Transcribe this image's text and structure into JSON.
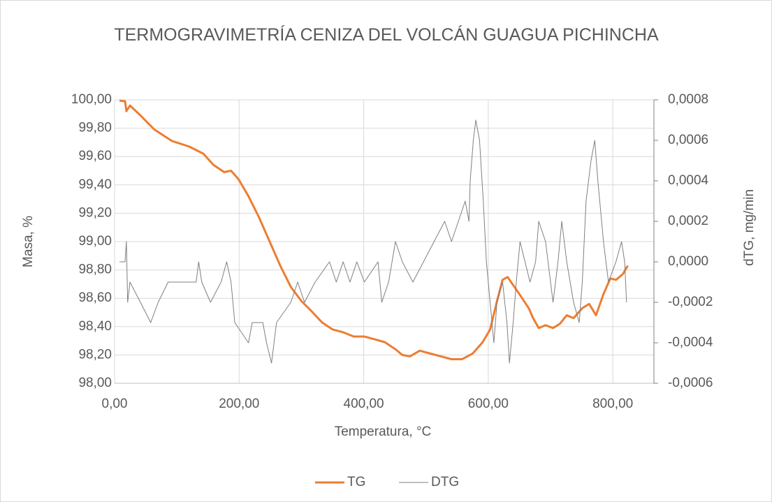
{
  "chart_data": {
    "type": "line",
    "title": "TERMOGRAVIMETRÍA CENIZA DEL VOLCÁN GUAGUA PICHINCHA",
    "x_label": "Temperatura, °C",
    "y_label": "Masa, %",
    "y2_label": "dTG, mg/min",
    "xlim": [
      0,
      866
    ],
    "xticks": [
      {
        "value": 0,
        "label": "0,00"
      },
      {
        "value": 200,
        "label": "200,00"
      },
      {
        "value": 400,
        "label": "400,00"
      },
      {
        "value": 600,
        "label": "600,00"
      },
      {
        "value": 800,
        "label": "800,00"
      }
    ],
    "ylim": [
      98,
      100
    ],
    "yticks": [
      {
        "value": 98,
        "label": "98,00"
      },
      {
        "value": 98.2,
        "label": "98,20"
      },
      {
        "value": 98.4,
        "label": "98,40"
      },
      {
        "value": 98.6,
        "label": "98,60"
      },
      {
        "value": 98.8,
        "label": "98,80"
      },
      {
        "value": 99,
        "label": "99,00"
      },
      {
        "value": 99.2,
        "label": "99,20"
      },
      {
        "value": 99.4,
        "label": "99,40"
      },
      {
        "value": 99.6,
        "label": "99,60"
      },
      {
        "value": 99.8,
        "label": "99,80"
      },
      {
        "value": 100,
        "label": "100,00"
      }
    ],
    "y2lim": [
      -0.0006,
      0.0008
    ],
    "y2ticks": [
      {
        "value": -0.0006,
        "label": "-0,0006"
      },
      {
        "value": -0.0004,
        "label": "-0,0004"
      },
      {
        "value": -0.0002,
        "label": "-0,0002"
      },
      {
        "value": 0,
        "label": "0,0000"
      },
      {
        "value": 0.0002,
        "label": "0,0002"
      },
      {
        "value": 0.0004,
        "label": "0,0004"
      },
      {
        "value": 0.0006,
        "label": "0,0006"
      },
      {
        "value": 0.0008,
        "label": "0,0008"
      }
    ],
    "grid": true,
    "legend": "bottom",
    "series": [
      {
        "name": "TG",
        "color": "#ed7d31",
        "axis": "y",
        "x": [
          7.9,
          16.8,
          19,
          24.7,
          41.5,
          64,
          92,
          120,
          142.5,
          159,
          176,
          187,
          199,
          215,
          232,
          249,
          266,
          283,
          300,
          316,
          333,
          350,
          367,
          384,
          401,
          418,
          434,
          451,
          462,
          474,
          490,
          507,
          524,
          541,
          558,
          575,
          591,
          603,
          614,
          623,
          631,
          642,
          653,
          665,
          672,
          681,
          692,
          704,
          715,
          726,
          737,
          751,
          762,
          773,
          785,
          796,
          805,
          816,
          824
        ],
        "values": [
          99.995,
          99.99,
          99.92,
          99.96,
          99.89,
          99.79,
          99.71,
          99.67,
          99.62,
          99.54,
          99.49,
          99.5,
          99.44,
          99.32,
          99.17,
          99.0,
          98.83,
          98.68,
          98.58,
          98.51,
          98.43,
          98.38,
          98.36,
          98.33,
          98.33,
          98.31,
          98.29,
          98.24,
          98.2,
          98.19,
          98.23,
          98.21,
          98.19,
          98.17,
          98.17,
          98.21,
          98.29,
          98.38,
          98.58,
          98.73,
          98.75,
          98.68,
          98.61,
          98.53,
          98.46,
          98.39,
          98.41,
          98.39,
          98.42,
          98.48,
          98.46,
          98.53,
          98.56,
          98.48,
          98.63,
          98.74,
          98.73,
          98.77,
          98.83
        ]
      },
      {
        "name": "DTG",
        "color": "#7f7f7f",
        "axis": "y2",
        "x": [
          7.9,
          16.8,
          19,
          21,
          24.7,
          41.5,
          58,
          70,
          86,
          131,
          135,
          140,
          154,
          171,
          180,
          187,
          193,
          215,
          221,
          238,
          244,
          252,
          260,
          283,
          294,
          305,
          322,
          345,
          356,
          367,
          378,
          389,
          401,
          423,
          429,
          440,
          451,
          462,
          479,
          496,
          513,
          530,
          541,
          552,
          563,
          569,
          571,
          576,
          580,
          586,
          592,
          597,
          603,
          609,
          614,
          623,
          630,
          634,
          640,
          645,
          651,
          659,
          667,
          676,
          681,
          692,
          704,
          712,
          718,
          726,
          737,
          746,
          751,
          757,
          765,
          771,
          776,
          785,
          793,
          805,
          814,
          819,
          822
        ],
        "values": [
          0,
          0,
          0.0001,
          -0.0002,
          -0.0001,
          -0.0002,
          -0.0003,
          -0.0002,
          -0.0001,
          -0.0001,
          0,
          -0.0001,
          -0.0002,
          -0.0001,
          0,
          -0.0001,
          -0.0003,
          -0.0004,
          -0.0003,
          -0.0003,
          -0.0004,
          -0.0005,
          -0.0003,
          -0.0002,
          -0.0001,
          -0.0002,
          -0.0001,
          0,
          -0.0001,
          0,
          -0.0001,
          0,
          -0.0001,
          0,
          -0.0002,
          -0.0001,
          0.0001,
          0,
          -0.0001,
          0,
          0.0001,
          0.0002,
          0.0001,
          0.0002,
          0.0003,
          0.0002,
          0.0004,
          0.0006,
          0.0007,
          0.0006,
          0.0003,
          0,
          -0.0002,
          -0.0004,
          -0.0002,
          -0.0001,
          -0.0003,
          -0.0005,
          -0.0003,
          -0.0001,
          0.0001,
          0,
          -0.0001,
          0,
          0.0002,
          0.0001,
          -0.0002,
          0,
          0.0002,
          0,
          -0.0002,
          -0.0003,
          -0.0001,
          0.0003,
          0.0005,
          0.0006,
          0.0004,
          0.0001,
          -0.0001,
          0,
          0.0001,
          0,
          -0.0002
        ]
      }
    ]
  }
}
